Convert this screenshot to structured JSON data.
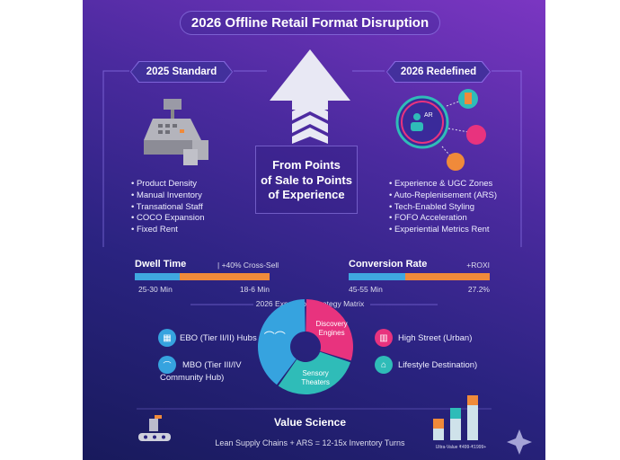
{
  "title": "2026 Offline Retail Format Disruption",
  "left": {
    "heading": "2025 Standard",
    "items": [
      "Product Density",
      "Manual Inventory",
      "Transational Staff",
      "COCO Expansion",
      "Fixed Rent"
    ]
  },
  "right": {
    "heading": "2026 Redefined",
    "icon_label": "AR",
    "items": [
      "Experience & UGC Zones",
      "Auto-Replenisement (ARS)",
      "Tech-Enabled Styling",
      "FOFO Acceleration",
      "Experiential Metrics Rent"
    ]
  },
  "center": {
    "line1": "From Points",
    "line2": "of Sale to Points",
    "line3": "of Experience"
  },
  "metrics": [
    {
      "label": "Dwell Time",
      "note": "| +40% Cross-Sell",
      "from": "25-30 Min",
      "to": "18-6 Min",
      "split_pct": 33
    },
    {
      "label": "Conversion Rate",
      "note": "+ROXI",
      "from": "45-55 Min",
      "to": "27.2%",
      "split_pct": 40
    }
  ],
  "matrix": {
    "title": "2026 Expansion Strategy Matrix",
    "segments": [
      {
        "label": "Discovery Engines",
        "color": "#e8337e",
        "share": 30
      },
      {
        "label": "Sensory Theaters",
        "color": "#2fbcb8",
        "share": 30
      },
      {
        "label": "",
        "color": "#36a3df",
        "share": 40
      }
    ],
    "left_items": [
      "EBO (Tier II/II) Hubs",
      "MBO (Tier III/IV",
      "Community Hub)"
    ],
    "right_items": [
      "High Street (Urban)",
      "Lifestyle Destination)"
    ]
  },
  "value": {
    "title": "Value Science",
    "subtitle": "Lean Supply Chains + ARS = 12-15x Inventory Turns",
    "caption": "Ultra-Value ₹499-₹1999+"
  },
  "colors": {
    "blue": "#3fa8e0",
    "orange": "#f08a3a",
    "pink": "#e8337e",
    "teal": "#2fbcb8"
  }
}
